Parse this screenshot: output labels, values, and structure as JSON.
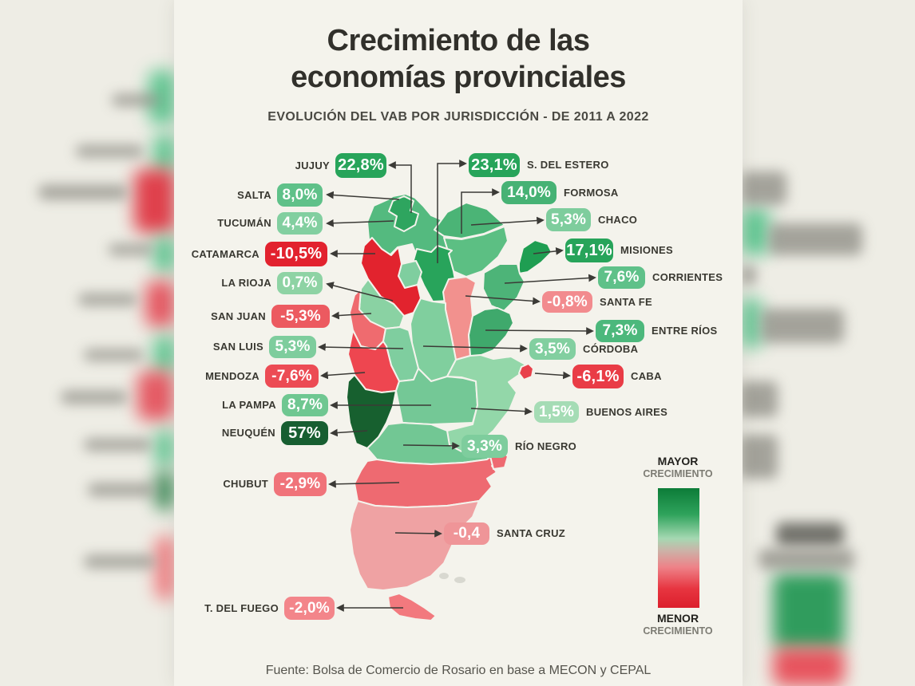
{
  "title_line1": "Crecimiento de las",
  "title_line2": "economías provinciales",
  "subtitle": "EVOLUCIÓN DEL VAB POR JURISDICCIÓN - DE 2011 A 2022",
  "source": "Fuente: Bolsa de Comercio de Rosario en base a MECON y CEPAL",
  "legend": {
    "top_word": "MAYOR",
    "top_word2": "CRECIMIENTO",
    "bottom_word": "MENOR",
    "bottom_word2": "CRECIMIENTO",
    "gradient": [
      "#0c7c38 0%",
      "#2fa35c 22%",
      "#a5d8b2 42%",
      "#cbb3a8 52%",
      "#ee8288 66%",
      "#e73540 84%",
      "#dc1f2c 100%"
    ]
  },
  "chart_data": {
    "type": "choropleth_map",
    "region": "Argentina",
    "title": "Crecimiento de las economías provinciales",
    "subtitle": "Evolución del VAB por jurisdicción - de 2011 a 2022",
    "unit": "%",
    "provinces": [
      {
        "key": "jujuy",
        "name": "JUJUY",
        "value_label": "22,8%",
        "value": 22.8,
        "badge_color": "#27a45a",
        "map_color": "#2ea55f"
      },
      {
        "key": "salta",
        "name": "SALTA",
        "value_label": "8,0%",
        "value": 8.0,
        "badge_color": "#5fc189",
        "map_color": "#54ba7f"
      },
      {
        "key": "tucuman",
        "name": "TUCUMÁN",
        "value_label": "4,4%",
        "value": 4.4,
        "badge_color": "#82cfa0",
        "map_color": "#7fce9f"
      },
      {
        "key": "catamarca",
        "name": "CATAMARCA",
        "value_label": "-10,5%",
        "value": -10.5,
        "badge_color": "#e2222e",
        "map_color": "#e2232e"
      },
      {
        "key": "la_rioja",
        "name": "LA RIOJA",
        "value_label": "0,7%",
        "value": 0.7,
        "badge_color": "#8ed3a4",
        "map_color": "#8ad2a3"
      },
      {
        "key": "san_juan",
        "name": "SAN JUAN",
        "value_label": "-5,3%",
        "value": -5.3,
        "badge_color": "#ec5a60",
        "map_color": "#ef6b6f"
      },
      {
        "key": "san_luis",
        "name": "SAN LUIS",
        "value_label": "5,3%",
        "value": 5.3,
        "badge_color": "#7ecd9d",
        "map_color": "#7fce9f"
      },
      {
        "key": "mendoza",
        "name": "MENDOZA",
        "value_label": "-7,6%",
        "value": -7.6,
        "badge_color": "#ec4b54",
        "map_color": "#ee4650"
      },
      {
        "key": "la_pampa",
        "name": "LA PAMPA",
        "value_label": "8,7%",
        "value": 8.7,
        "badge_color": "#6fc791",
        "map_color": "#74c896"
      },
      {
        "key": "neuquen",
        "name": "NEUQUÉN",
        "value_label": "57%",
        "value": 57,
        "badge_color": "#175e31",
        "map_color": "#17602f"
      },
      {
        "key": "chubut",
        "name": "CHUBUT",
        "value_label": "-2,9%",
        "value": -2.9,
        "badge_color": "#f0737a",
        "map_color": "#ee6a71"
      },
      {
        "key": "t_del_fuego",
        "name": "T. DEL FUEGO",
        "value_label": "-2,0%",
        "value": -2.0,
        "badge_color": "#f3858a",
        "map_color": "#f2797e"
      },
      {
        "key": "s_del_estero",
        "name": "S. DEL ESTERO",
        "value_label": "23,1%",
        "value": 23.1,
        "badge_color": "#27a45a",
        "map_color": "#28a45b"
      },
      {
        "key": "formosa",
        "name": "FORMOSA",
        "value_label": "14,0%",
        "value": 14.0,
        "badge_color": "#46b274",
        "map_color": "#4bb476"
      },
      {
        "key": "chaco",
        "name": "CHACO",
        "value_label": "5,3%",
        "value": 5.3,
        "badge_color": "#7ecd9d",
        "map_color": "#5cbf83"
      },
      {
        "key": "misiones",
        "name": "MISIONES",
        "value_label": "17,1%",
        "value": 17.1,
        "badge_color": "#27a45a",
        "map_color": "#1f9e52"
      },
      {
        "key": "corrientes",
        "name": "CORRIENTES",
        "value_label": "7,6%",
        "value": 7.6,
        "badge_color": "#5fc189",
        "map_color": "#4db478"
      },
      {
        "key": "santa_fe",
        "name": "SANTA FE",
        "value_label": "-0,8%",
        "value": -0.8,
        "badge_color": "#f28b8e",
        "map_color": "#f2918e"
      },
      {
        "key": "entre_rios",
        "name": "ENTRE RÍOS",
        "value_label": "7,3%",
        "value": 7.3,
        "badge_color": "#4cb87c",
        "map_color": "#3fa96c"
      },
      {
        "key": "cordoba",
        "name": "CÓRDOBA",
        "value_label": "3,5%",
        "value": 3.5,
        "badge_color": "#82cfa0",
        "map_color": "#80cf9e"
      },
      {
        "key": "caba",
        "name": "CABA",
        "value_label": "-6,1%",
        "value": -6.1,
        "badge_color": "#e93c46",
        "map_color": "#e8414b"
      },
      {
        "key": "buenos_aires",
        "name": "BUENOS AIRES",
        "value_label": "1,5%",
        "value": 1.5,
        "badge_color": "#a5dcb5",
        "map_color": "#93d7a9"
      },
      {
        "key": "rio_negro",
        "name": "RÍO NEGRO",
        "value_label": "3,3%",
        "value": 3.3,
        "badge_color": "#7ecd9d",
        "map_color": "#72c794"
      },
      {
        "key": "santa_cruz",
        "name": "SANTA CRUZ",
        "value_label": "-0,4",
        "value": -0.4,
        "badge_color": "#ef9598",
        "map_color": "#efa2a3"
      }
    ],
    "legend": {
      "high_label": "MAYOR CRECIMIENTO",
      "low_label": "MENOR CRECIMIENTO"
    },
    "source": "Fuente: Bolsa de Comercio de Rosario en base a MECON y CEPAL"
  }
}
